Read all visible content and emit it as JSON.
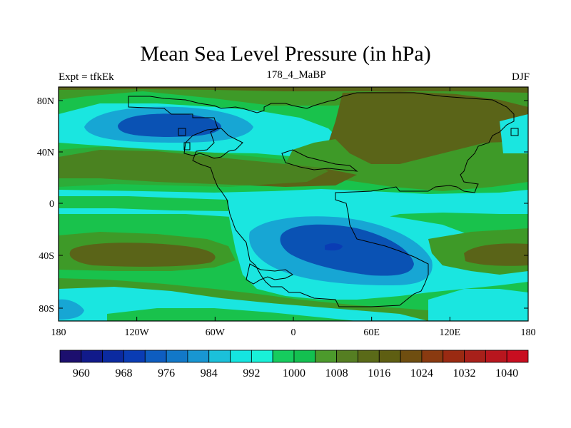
{
  "title": "Mean Sea Level Pressure (in hPa)",
  "left_string": "Expt = tfkEk",
  "center_string": "178_4_MaBP",
  "right_string": "DJF",
  "x_ticks": [
    "180",
    "120W",
    "60W",
    "0",
    "60E",
    "120E",
    "180"
  ],
  "y_ticks": [
    "80N",
    "40N",
    "0",
    "40S",
    "80S"
  ],
  "colorbar": {
    "labels": [
      "960",
      "968",
      "976",
      "984",
      "992",
      "1000",
      "1008",
      "1016",
      "1024",
      "1032",
      "1040"
    ],
    "colors": [
      "#1c0f6e",
      "#111a8a",
      "#0b2aa0",
      "#0a3cb4",
      "#0e5dc0",
      "#1278c8",
      "#1896d2",
      "#1bc0da",
      "#15e5e0",
      "#19f0d8",
      "#16cc5e",
      "#13c050",
      "#4c9a2c",
      "#557e22",
      "#5a6a18",
      "#5e5e12",
      "#6f4e10",
      "#8a3a10",
      "#9a2a12",
      "#a8201a",
      "#b8161e",
      "#c80e20"
    ]
  },
  "legend": {
    "fill_deep_low": "#0a52b4",
    "fill_low": "#17a6d4",
    "fill_mid_low": "#1ae6e0",
    "fill_mid": "#19c24c",
    "fill_mid_high": "#3e9a28",
    "fill_high": "#5a6418",
    "fill_high_rim": "#7c3a10",
    "outline": "#000000"
  }
}
